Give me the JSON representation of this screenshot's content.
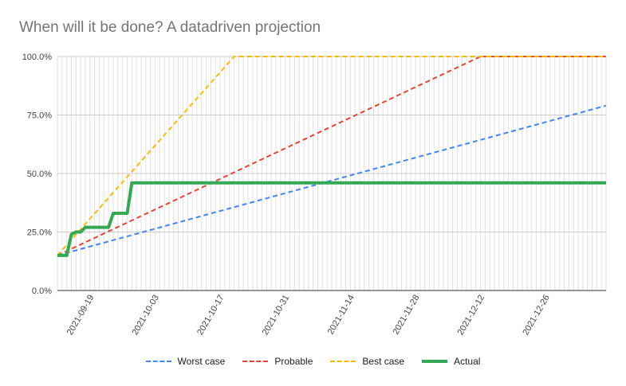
{
  "chart_data": {
    "type": "line",
    "title": "When will it be done? A datadriven projection",
    "xlabel": "",
    "ylabel": "",
    "x_ticks": [
      "2021-09-19",
      "2021-10-03",
      "2021-10-17",
      "2021-10-31",
      "2021-11-14",
      "2021-11-28",
      "2021-12-12",
      "2021-12-26"
    ],
    "y_ticks": [
      "0.0%",
      "25.0%",
      "50.0%",
      "75.0%",
      "100.0%"
    ],
    "xlim": [
      "2021-09-12",
      "2022-01-08"
    ],
    "ylim": [
      0,
      100
    ],
    "grid": true,
    "legend_position": "bottom",
    "series": [
      {
        "name": "Worst case",
        "color": "#4285f4",
        "style": "dashed",
        "points": [
          [
            "2021-09-12",
            15
          ],
          [
            "2022-01-08",
            79
          ]
        ]
      },
      {
        "name": "Probable",
        "color": "#ea4335",
        "style": "dashed",
        "points": [
          [
            "2021-09-12",
            15
          ],
          [
            "2021-12-12",
            100
          ],
          [
            "2022-01-08",
            100
          ]
        ]
      },
      {
        "name": "Best case",
        "color": "#fbbc04",
        "style": "dashed",
        "points": [
          [
            "2021-09-12",
            15
          ],
          [
            "2021-10-20",
            100
          ],
          [
            "2022-01-08",
            100
          ]
        ]
      },
      {
        "name": "Actual",
        "color": "#34a853",
        "style": "solid",
        "points": [
          [
            "2021-09-12",
            15
          ],
          [
            "2021-09-14",
            15
          ],
          [
            "2021-09-15",
            24
          ],
          [
            "2021-09-16",
            25
          ],
          [
            "2021-09-17",
            25
          ],
          [
            "2021-09-18",
            27
          ],
          [
            "2021-09-23",
            27
          ],
          [
            "2021-09-24",
            33
          ],
          [
            "2021-09-27",
            33
          ],
          [
            "2021-09-28",
            46
          ],
          [
            "2022-01-08",
            46
          ]
        ]
      }
    ]
  }
}
